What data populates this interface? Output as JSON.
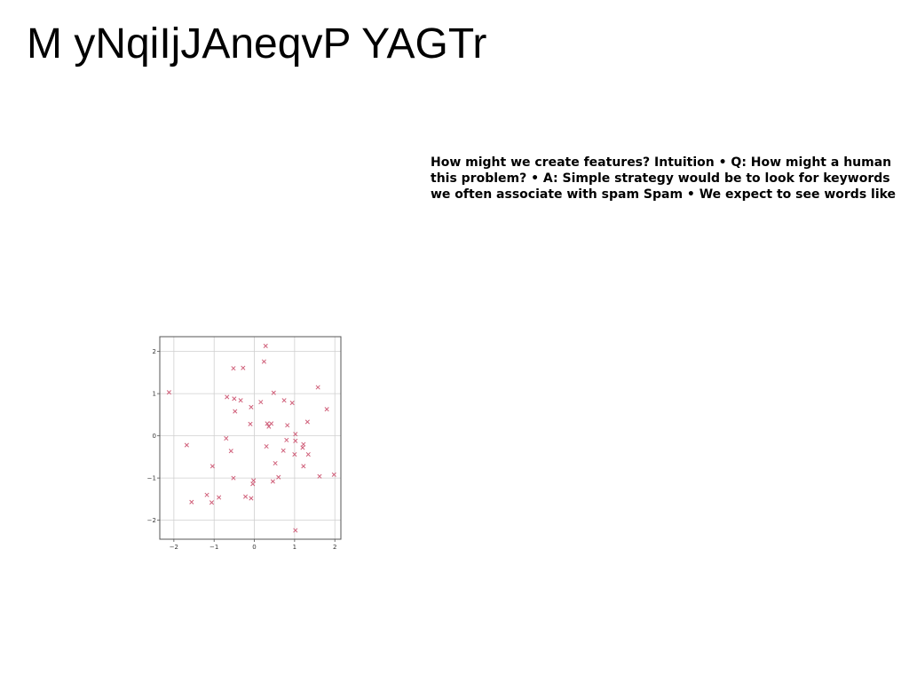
{
  "slide": {
    "title": "M yNqiIjJAneqvP YAGTr",
    "body_lines": [
      "How might we create features? Intuition • Q: How might a human",
      "this problem? • A: Simple strategy would be to look for keywords",
      "we often associate with spam Spam • We expect to see words like"
    ]
  },
  "chart_data": {
    "type": "scatter",
    "marker": "x",
    "marker_color": "#d0607a",
    "grid": true,
    "xlim": [
      -2.35,
      2.15
    ],
    "ylim": [
      -2.45,
      2.35
    ],
    "xticks": [
      -2,
      -1,
      0,
      1,
      2
    ],
    "yticks": [
      -2,
      -1,
      0,
      1,
      2
    ],
    "xtick_labels": [
      "−2",
      "−1",
      "0",
      "1",
      "2"
    ],
    "ytick_labels": [
      "−2",
      "−1",
      "0",
      "1",
      "2"
    ],
    "points": [
      [
        0.28,
        2.13
      ],
      [
        0.24,
        1.76
      ],
      [
        -0.52,
        1.6
      ],
      [
        -0.28,
        1.61
      ],
      [
        -2.12,
        1.03
      ],
      [
        1.58,
        1.15
      ],
      [
        0.48,
        1.02
      ],
      [
        -0.68,
        0.92
      ],
      [
        -0.5,
        0.88
      ],
      [
        -0.34,
        0.84
      ],
      [
        0.16,
        0.8
      ],
      [
        0.74,
        0.84
      ],
      [
        0.94,
        0.78
      ],
      [
        -0.08,
        0.68
      ],
      [
        1.8,
        0.63
      ],
      [
        -0.48,
        0.58
      ],
      [
        1.32,
        0.33
      ],
      [
        -0.1,
        0.28
      ],
      [
        0.32,
        0.29
      ],
      [
        0.42,
        0.29
      ],
      [
        0.82,
        0.25
      ],
      [
        0.36,
        0.22
      ],
      [
        1.02,
        0.04
      ],
      [
        -0.7,
        -0.06
      ],
      [
        0.8,
        -0.1
      ],
      [
        1.02,
        -0.12
      ],
      [
        1.22,
        -0.2
      ],
      [
        -1.68,
        -0.22
      ],
      [
        0.3,
        -0.25
      ],
      [
        1.2,
        -0.28
      ],
      [
        -0.58,
        -0.36
      ],
      [
        0.72,
        -0.35
      ],
      [
        1.34,
        -0.44
      ],
      [
        1.0,
        -0.44
      ],
      [
        0.52,
        -0.65
      ],
      [
        -1.04,
        -0.72
      ],
      [
        1.22,
        -0.72
      ],
      [
        1.98,
        -0.92
      ],
      [
        1.62,
        -0.96
      ],
      [
        0.6,
        -0.98
      ],
      [
        -0.52,
        -1.0
      ],
      [
        -0.02,
        -1.06
      ],
      [
        0.46,
        -1.08
      ],
      [
        -0.04,
        -1.14
      ],
      [
        -1.18,
        -1.4
      ],
      [
        -0.88,
        -1.46
      ],
      [
        -0.22,
        -1.44
      ],
      [
        -0.08,
        -1.48
      ],
      [
        -1.56,
        -1.57
      ],
      [
        -1.06,
        -1.58
      ],
      [
        1.02,
        -2.24
      ]
    ]
  }
}
